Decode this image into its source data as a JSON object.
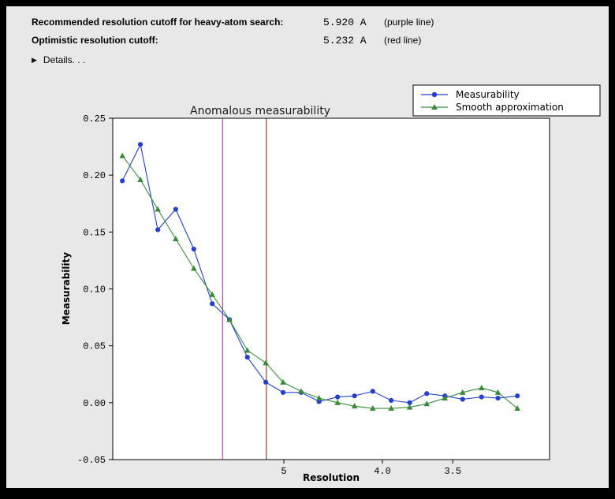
{
  "header": {
    "row1_label": "Recommended resolution cutoff for heavy-atom search:",
    "row1_value": "5.920 A",
    "row1_note": "(purple line)",
    "row2_label": "Optimistic resolution cutoff:",
    "row2_value": "5.232 A",
    "row2_note": "(red line)",
    "details_label": "Details. . ."
  },
  "chart_data": {
    "type": "line",
    "title": "Anomalous measurability",
    "xlabel": "Resolution",
    "ylabel": "Measurability",
    "ylim": [
      -0.05,
      0.25
    ],
    "yticks": [
      {
        "label": "0.25",
        "v": 0.25
      },
      {
        "label": "0.20",
        "v": 0.2
      },
      {
        "label": "0.15",
        "v": 0.15
      },
      {
        "label": "0.10",
        "v": 0.1
      },
      {
        "label": "0.05",
        "v": 0.05
      },
      {
        "label": "0.00",
        "v": 0.0
      },
      {
        "label": "-0.05",
        "v": -0.05
      }
    ],
    "x_axis": {
      "scale": "inverse_resolution_angstrom",
      "range_invd": [
        0.1132,
        0.3348
      ],
      "ticks": [
        {
          "label": "5",
          "d": 5.0
        },
        {
          "label": "4.0",
          "d": 4.0
        },
        {
          "label": "3.5",
          "d": 3.5
        }
      ]
    },
    "series": [
      {
        "name": "Measurability",
        "color": "#2440cc",
        "marker": "circle",
        "x": [
          8.47,
          7.86,
          7.35,
          6.89,
          6.48,
          6.11,
          5.8,
          5.51,
          5.24,
          5.01,
          4.79,
          4.59,
          4.4,
          4.24,
          4.08,
          3.93,
          3.79,
          3.67,
          3.55,
          3.44,
          3.33,
          3.24,
          3.14
        ],
        "y": [
          0.195,
          0.227,
          0.152,
          0.17,
          0.135,
          0.087,
          0.073,
          0.04,
          0.018,
          0.009,
          0.009,
          0.001,
          0.005,
          0.006,
          0.01,
          0.002,
          0.0,
          0.008,
          0.006,
          0.003,
          0.005,
          0.004,
          0.006
        ]
      },
      {
        "name": "Smooth approximation",
        "color": "#3a8a3a",
        "marker": "triangle",
        "x": [
          8.47,
          7.86,
          7.35,
          6.89,
          6.48,
          6.11,
          5.8,
          5.51,
          5.24,
          5.01,
          4.79,
          4.59,
          4.4,
          4.24,
          4.08,
          3.93,
          3.79,
          3.67,
          3.55,
          3.44,
          3.33,
          3.24,
          3.14
        ],
        "y": [
          0.217,
          0.196,
          0.17,
          0.144,
          0.118,
          0.095,
          0.073,
          0.046,
          0.035,
          0.018,
          0.01,
          0.004,
          0.0,
          -0.003,
          -0.005,
          -0.005,
          -0.004,
          -0.001,
          0.004,
          0.009,
          0.013,
          0.009,
          -0.005
        ]
      }
    ],
    "vlines": [
      {
        "name": "purple-cutoff-line",
        "d": 5.92,
        "color": "#bb44bb"
      },
      {
        "name": "red-cutoff-line",
        "d": 5.232,
        "color": "#994433"
      }
    ],
    "legend": {
      "position": "top-right"
    }
  }
}
